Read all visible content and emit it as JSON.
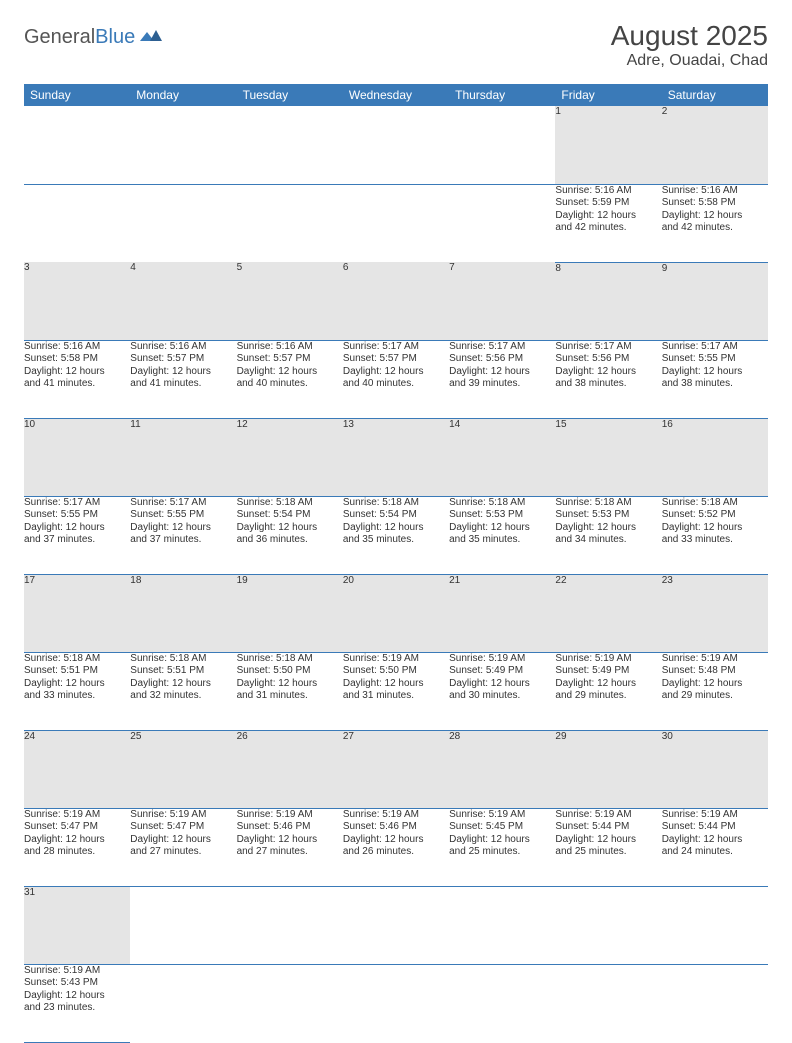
{
  "logo": {
    "text1": "General",
    "text2": "Blue",
    "text1_color": "#555555",
    "text2_color": "#3a7ab8"
  },
  "title": "August 2025",
  "location": "Adre, Ouadai, Chad",
  "header_bg": "#3a7ab8",
  "header_fg": "#ffffff",
  "daynum_bg": "#e5e5e5",
  "border_color": "#3a7ab8",
  "day_headers": [
    "Sunday",
    "Monday",
    "Tuesday",
    "Wednesday",
    "Thursday",
    "Friday",
    "Saturday"
  ],
  "weeks": [
    {
      "nums": [
        "",
        "",
        "",
        "",
        "",
        "1",
        "2"
      ],
      "cells": [
        null,
        null,
        null,
        null,
        null,
        {
          "sunrise": "Sunrise: 5:16 AM",
          "sunset": "Sunset: 5:59 PM",
          "day1": "Daylight: 12 hours",
          "day2": "and 42 minutes."
        },
        {
          "sunrise": "Sunrise: 5:16 AM",
          "sunset": "Sunset: 5:58 PM",
          "day1": "Daylight: 12 hours",
          "day2": "and 42 minutes."
        }
      ]
    },
    {
      "nums": [
        "3",
        "4",
        "5",
        "6",
        "7",
        "8",
        "9"
      ],
      "cells": [
        {
          "sunrise": "Sunrise: 5:16 AM",
          "sunset": "Sunset: 5:58 PM",
          "day1": "Daylight: 12 hours",
          "day2": "and 41 minutes."
        },
        {
          "sunrise": "Sunrise: 5:16 AM",
          "sunset": "Sunset: 5:57 PM",
          "day1": "Daylight: 12 hours",
          "day2": "and 41 minutes."
        },
        {
          "sunrise": "Sunrise: 5:16 AM",
          "sunset": "Sunset: 5:57 PM",
          "day1": "Daylight: 12 hours",
          "day2": "and 40 minutes."
        },
        {
          "sunrise": "Sunrise: 5:17 AM",
          "sunset": "Sunset: 5:57 PM",
          "day1": "Daylight: 12 hours",
          "day2": "and 40 minutes."
        },
        {
          "sunrise": "Sunrise: 5:17 AM",
          "sunset": "Sunset: 5:56 PM",
          "day1": "Daylight: 12 hours",
          "day2": "and 39 minutes."
        },
        {
          "sunrise": "Sunrise: 5:17 AM",
          "sunset": "Sunset: 5:56 PM",
          "day1": "Daylight: 12 hours",
          "day2": "and 38 minutes."
        },
        {
          "sunrise": "Sunrise: 5:17 AM",
          "sunset": "Sunset: 5:55 PM",
          "day1": "Daylight: 12 hours",
          "day2": "and 38 minutes."
        }
      ]
    },
    {
      "nums": [
        "10",
        "11",
        "12",
        "13",
        "14",
        "15",
        "16"
      ],
      "cells": [
        {
          "sunrise": "Sunrise: 5:17 AM",
          "sunset": "Sunset: 5:55 PM",
          "day1": "Daylight: 12 hours",
          "day2": "and 37 minutes."
        },
        {
          "sunrise": "Sunrise: 5:17 AM",
          "sunset": "Sunset: 5:55 PM",
          "day1": "Daylight: 12 hours",
          "day2": "and 37 minutes."
        },
        {
          "sunrise": "Sunrise: 5:18 AM",
          "sunset": "Sunset: 5:54 PM",
          "day1": "Daylight: 12 hours",
          "day2": "and 36 minutes."
        },
        {
          "sunrise": "Sunrise: 5:18 AM",
          "sunset": "Sunset: 5:54 PM",
          "day1": "Daylight: 12 hours",
          "day2": "and 35 minutes."
        },
        {
          "sunrise": "Sunrise: 5:18 AM",
          "sunset": "Sunset: 5:53 PM",
          "day1": "Daylight: 12 hours",
          "day2": "and 35 minutes."
        },
        {
          "sunrise": "Sunrise: 5:18 AM",
          "sunset": "Sunset: 5:53 PM",
          "day1": "Daylight: 12 hours",
          "day2": "and 34 minutes."
        },
        {
          "sunrise": "Sunrise: 5:18 AM",
          "sunset": "Sunset: 5:52 PM",
          "day1": "Daylight: 12 hours",
          "day2": "and 33 minutes."
        }
      ]
    },
    {
      "nums": [
        "17",
        "18",
        "19",
        "20",
        "21",
        "22",
        "23"
      ],
      "cells": [
        {
          "sunrise": "Sunrise: 5:18 AM",
          "sunset": "Sunset: 5:51 PM",
          "day1": "Daylight: 12 hours",
          "day2": "and 33 minutes."
        },
        {
          "sunrise": "Sunrise: 5:18 AM",
          "sunset": "Sunset: 5:51 PM",
          "day1": "Daylight: 12 hours",
          "day2": "and 32 minutes."
        },
        {
          "sunrise": "Sunrise: 5:18 AM",
          "sunset": "Sunset: 5:50 PM",
          "day1": "Daylight: 12 hours",
          "day2": "and 31 minutes."
        },
        {
          "sunrise": "Sunrise: 5:19 AM",
          "sunset": "Sunset: 5:50 PM",
          "day1": "Daylight: 12 hours",
          "day2": "and 31 minutes."
        },
        {
          "sunrise": "Sunrise: 5:19 AM",
          "sunset": "Sunset: 5:49 PM",
          "day1": "Daylight: 12 hours",
          "day2": "and 30 minutes."
        },
        {
          "sunrise": "Sunrise: 5:19 AM",
          "sunset": "Sunset: 5:49 PM",
          "day1": "Daylight: 12 hours",
          "day2": "and 29 minutes."
        },
        {
          "sunrise": "Sunrise: 5:19 AM",
          "sunset": "Sunset: 5:48 PM",
          "day1": "Daylight: 12 hours",
          "day2": "and 29 minutes."
        }
      ]
    },
    {
      "nums": [
        "24",
        "25",
        "26",
        "27",
        "28",
        "29",
        "30"
      ],
      "cells": [
        {
          "sunrise": "Sunrise: 5:19 AM",
          "sunset": "Sunset: 5:47 PM",
          "day1": "Daylight: 12 hours",
          "day2": "and 28 minutes."
        },
        {
          "sunrise": "Sunrise: 5:19 AM",
          "sunset": "Sunset: 5:47 PM",
          "day1": "Daylight: 12 hours",
          "day2": "and 27 minutes."
        },
        {
          "sunrise": "Sunrise: 5:19 AM",
          "sunset": "Sunset: 5:46 PM",
          "day1": "Daylight: 12 hours",
          "day2": "and 27 minutes."
        },
        {
          "sunrise": "Sunrise: 5:19 AM",
          "sunset": "Sunset: 5:46 PM",
          "day1": "Daylight: 12 hours",
          "day2": "and 26 minutes."
        },
        {
          "sunrise": "Sunrise: 5:19 AM",
          "sunset": "Sunset: 5:45 PM",
          "day1": "Daylight: 12 hours",
          "day2": "and 25 minutes."
        },
        {
          "sunrise": "Sunrise: 5:19 AM",
          "sunset": "Sunset: 5:44 PM",
          "day1": "Daylight: 12 hours",
          "day2": "and 25 minutes."
        },
        {
          "sunrise": "Sunrise: 5:19 AM",
          "sunset": "Sunset: 5:44 PM",
          "day1": "Daylight: 12 hours",
          "day2": "and 24 minutes."
        }
      ]
    },
    {
      "nums": [
        "31",
        "",
        "",
        "",
        "",
        "",
        ""
      ],
      "cells": [
        {
          "sunrise": "Sunrise: 5:19 AM",
          "sunset": "Sunset: 5:43 PM",
          "day1": "Daylight: 12 hours",
          "day2": "and 23 minutes."
        },
        null,
        null,
        null,
        null,
        null,
        null
      ]
    }
  ]
}
